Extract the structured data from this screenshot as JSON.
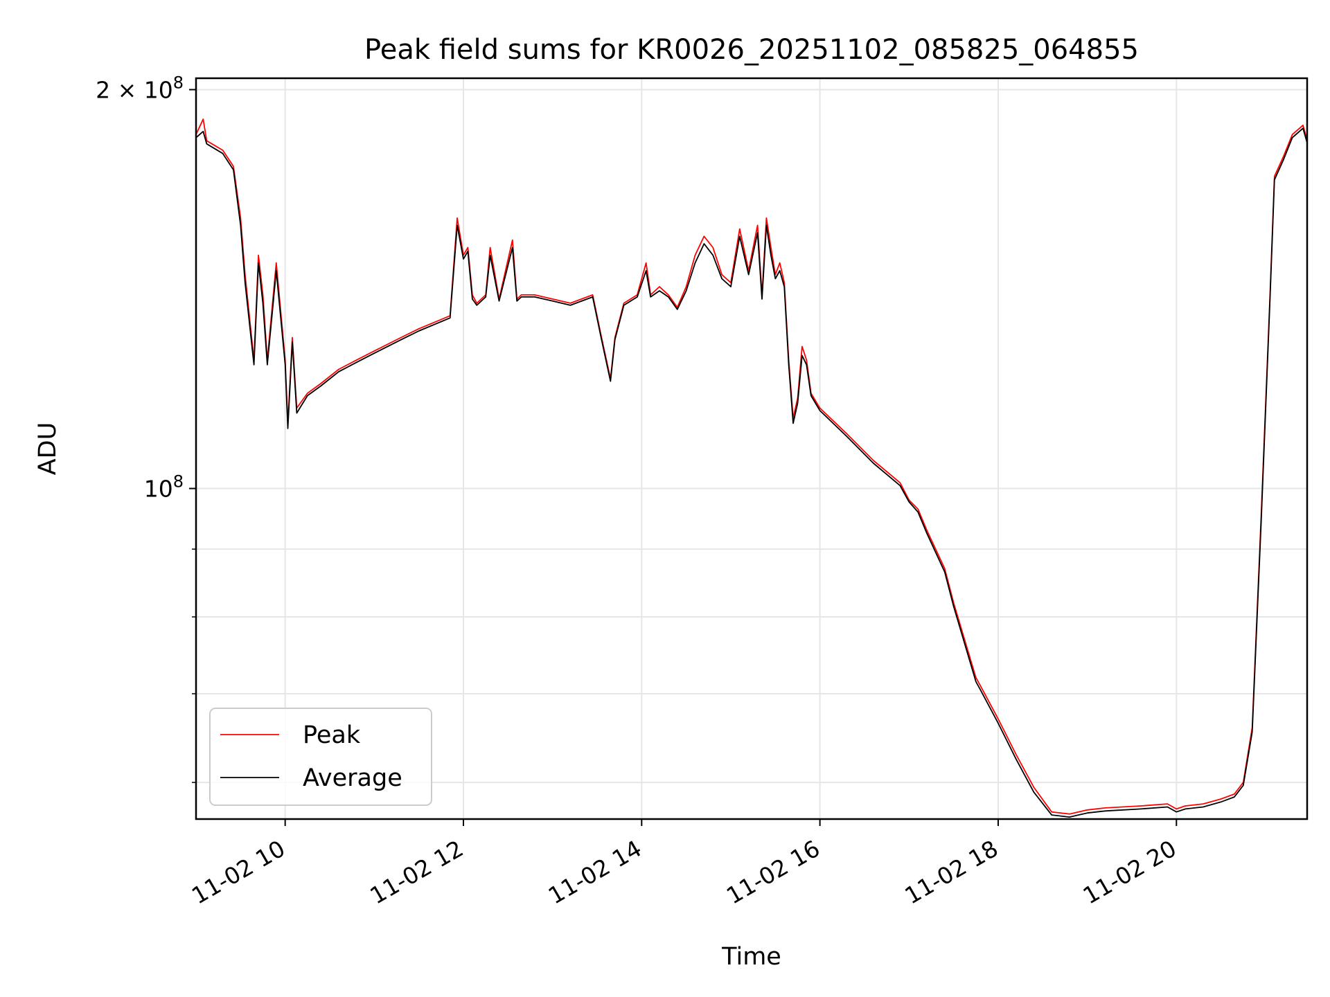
{
  "chart_data": {
    "type": "line",
    "title": "Peak field sums for KR0026_20251102_085825_064855",
    "xlabel": "Time",
    "ylabel": "ADU",
    "x_tick_labels": [
      "11-02 10",
      "11-02 12",
      "11-02 14",
      "11-02 16",
      "11-02 18",
      "11-02 20"
    ],
    "x_tick_hours": [
      10,
      12,
      14,
      16,
      18,
      20
    ],
    "y_tick_labels": [
      {
        "value": 100000000,
        "mantissa": "10",
        "exponent": "8"
      },
      {
        "value": 200000000,
        "mantissa": "2 × 10",
        "exponent": "8"
      }
    ],
    "y_minor_ticks": [
      60000000,
      70000000,
      80000000,
      90000000
    ],
    "xlim": [
      "2025-11-02 09:00",
      "2025-11-02 21:28"
    ],
    "ylim": [
      56300000,
      204000000
    ],
    "y_scale": "log",
    "grid": true,
    "legend": "lower-left",
    "series": [
      {
        "name": "Peak",
        "color": "#ff0000",
        "x_hours": [
          9.0,
          9.08,
          9.12,
          9.3,
          9.42,
          9.5,
          9.55,
          9.65,
          9.7,
          9.75,
          9.8,
          9.9,
          10.0,
          10.03,
          10.08,
          10.13,
          10.25,
          10.4,
          10.6,
          10.8,
          11.0,
          11.3,
          11.5,
          11.85,
          11.93,
          12.0,
          12.05,
          12.1,
          12.15,
          12.25,
          12.3,
          12.4,
          12.55,
          12.6,
          12.65,
          12.8,
          13.0,
          13.2,
          13.45,
          13.55,
          13.65,
          13.7,
          13.8,
          13.95,
          14.05,
          14.1,
          14.2,
          14.3,
          14.4,
          14.5,
          14.6,
          14.7,
          14.8,
          14.9,
          15.0,
          15.1,
          15.2,
          15.3,
          15.35,
          15.4,
          15.45,
          15.5,
          15.55,
          15.6,
          15.65,
          15.7,
          15.75,
          15.8,
          15.85,
          15.9,
          16.0,
          16.3,
          16.6,
          16.9,
          17.0,
          17.1,
          17.2,
          17.4,
          17.5,
          17.75,
          17.8,
          18.0,
          18.2,
          18.4,
          18.6,
          18.8,
          18.9,
          19.0,
          19.2,
          19.6,
          19.9,
          20.0,
          20.1,
          20.3,
          20.5,
          20.65,
          20.75,
          20.85,
          20.95,
          21.05,
          21.1,
          21.2,
          21.3,
          21.42,
          21.47
        ],
        "y": [
          185000000,
          190000000,
          183000000,
          180000000,
          175000000,
          160000000,
          145000000,
          125000000,
          150000000,
          140000000,
          125000000,
          148000000,
          125000000,
          112000000,
          130000000,
          115000000,
          118000000,
          120000000,
          123000000,
          125000000,
          127000000,
          130000000,
          132000000,
          135000000,
          160000000,
          150000000,
          152000000,
          140000000,
          138000000,
          140000000,
          152000000,
          139000000,
          154000000,
          139000000,
          140000000,
          140000000,
          139000000,
          138000000,
          140000000,
          130000000,
          121000000,
          130000000,
          138000000,
          140000000,
          148000000,
          140000000,
          142000000,
          140000000,
          137000000,
          142000000,
          150000000,
          155000000,
          152000000,
          145000000,
          143000000,
          157000000,
          146000000,
          158000000,
          140000000,
          160000000,
          152000000,
          145000000,
          148000000,
          143000000,
          125000000,
          113000000,
          117000000,
          128000000,
          125000000,
          118000000,
          115000000,
          110000000,
          105000000,
          101000000,
          98000000,
          96500000,
          93000000,
          87000000,
          82000000,
          72000000,
          71000000,
          67000000,
          63000000,
          59500000,
          57000000,
          56800000,
          57000000,
          57200000,
          57400000,
          57600000,
          57800000,
          57300000,
          57600000,
          57800000,
          58300000,
          58800000,
          60000000,
          66000000,
          95000000,
          140000000,
          172000000,
          178000000,
          185000000,
          188000000,
          183000000
        ]
      },
      {
        "name": "Average",
        "color": "#000000",
        "x_hours": [
          9.0,
          9.08,
          9.12,
          9.3,
          9.42,
          9.5,
          9.55,
          9.65,
          9.7,
          9.75,
          9.8,
          9.9,
          10.0,
          10.03,
          10.08,
          10.13,
          10.25,
          10.4,
          10.6,
          10.8,
          11.0,
          11.3,
          11.5,
          11.85,
          11.93,
          12.0,
          12.05,
          12.1,
          12.15,
          12.25,
          12.3,
          12.4,
          12.55,
          12.6,
          12.65,
          12.8,
          13.0,
          13.2,
          13.45,
          13.55,
          13.65,
          13.7,
          13.8,
          13.95,
          14.05,
          14.1,
          14.2,
          14.3,
          14.4,
          14.5,
          14.6,
          14.7,
          14.8,
          14.9,
          15.0,
          15.1,
          15.2,
          15.3,
          15.35,
          15.4,
          15.45,
          15.5,
          15.55,
          15.6,
          15.65,
          15.7,
          15.75,
          15.8,
          15.85,
          15.9,
          16.0,
          16.3,
          16.6,
          16.9,
          17.0,
          17.1,
          17.2,
          17.4,
          17.5,
          17.75,
          17.8,
          18.0,
          18.2,
          18.4,
          18.6,
          18.8,
          18.9,
          19.0,
          19.2,
          19.6,
          19.9,
          20.0,
          20.1,
          20.3,
          20.5,
          20.65,
          20.75,
          20.85,
          20.95,
          21.05,
          21.1,
          21.2,
          21.3,
          21.42,
          21.47
        ],
        "y": [
          184000000,
          186000000,
          182000000,
          179000000,
          174000000,
          158000000,
          143000000,
          124000000,
          148000000,
          138000000,
          124000000,
          146000000,
          124000000,
          111000000,
          129000000,
          114000000,
          117500000,
          119500000,
          122500000,
          124500000,
          126500000,
          129500000,
          131500000,
          134500000,
          158000000,
          149000000,
          151000000,
          139000000,
          137500000,
          139500000,
          150000000,
          138500000,
          152000000,
          138500000,
          139500000,
          139500000,
          138500000,
          137500000,
          139500000,
          129500000,
          120500000,
          129500000,
          137500000,
          139500000,
          146000000,
          139500000,
          141000000,
          139500000,
          136500000,
          141000000,
          148000000,
          153000000,
          150000000,
          144000000,
          142000000,
          155000000,
          145000000,
          156000000,
          139000000,
          158000000,
          150000000,
          144000000,
          146000000,
          142000000,
          124000000,
          112000000,
          116000000,
          126000000,
          124000000,
          117500000,
          114500000,
          109500000,
          104500000,
          100500000,
          97700000,
          96000000,
          92500000,
          86500000,
          81500000,
          71500000,
          70500000,
          66500000,
          62500000,
          59000000,
          56700000,
          56500000,
          56700000,
          56900000,
          57100000,
          57300000,
          57500000,
          57000000,
          57300000,
          57500000,
          58000000,
          58500000,
          59700000,
          65500000,
          94000000,
          139000000,
          171000000,
          177000000,
          184000000,
          187000000,
          182000000
        ]
      }
    ]
  }
}
